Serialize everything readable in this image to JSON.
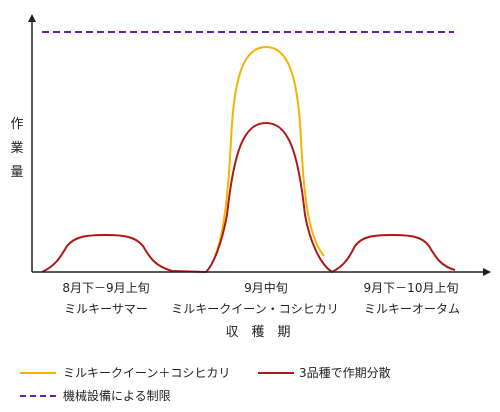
{
  "y_axis_label": [
    "作",
    "業",
    "量"
  ],
  "x_axis_title": "収　穫　期",
  "periods": [
    {
      "date": "8月下－9月上旬",
      "variety": "ミルキーサマー"
    },
    {
      "date": "9月中旬",
      "variety": "ミルキークイーン・コシヒカリ"
    },
    {
      "date": "9月下－10月上旬",
      "variety": "ミルキーオータム"
    }
  ],
  "legend": {
    "two_varieties": "ミルキークイーン＋コシヒカリ",
    "three_varieties": "3品種で作期分散",
    "machine_limit": "機械設備による制限"
  },
  "colors": {
    "two_varieties": "#f5b400",
    "three_varieties": "#b01818",
    "machine_limit": "#6a1fa8",
    "axis": "#222222"
  }
}
